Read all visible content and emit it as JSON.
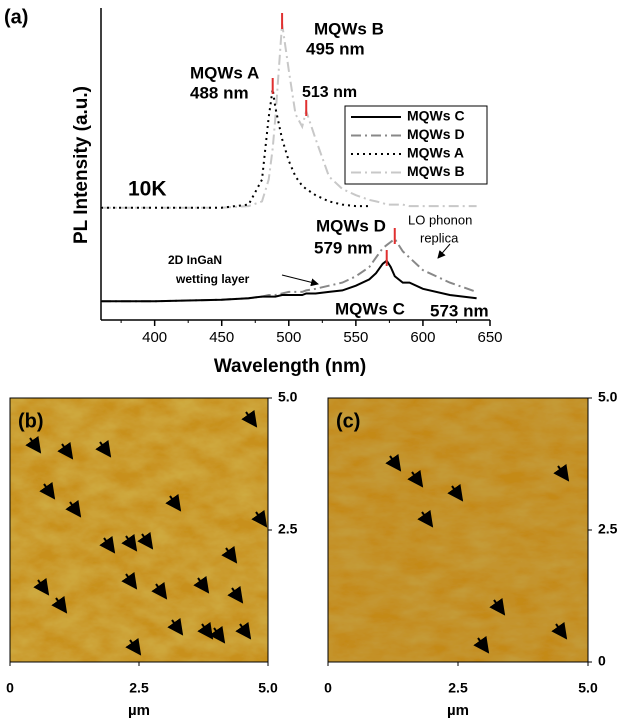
{
  "chart_data": [
    {
      "type": "line",
      "panel_label": "(a)",
      "x_label": "Wavelength (nm)",
      "y_label": "PL Intensity (a.u.)",
      "xlim": [
        360,
        650
      ],
      "xticks": [
        400,
        450,
        500,
        550,
        600,
        650
      ],
      "ylim": [
        0,
        100
      ],
      "legend_position": "right",
      "x": [
        360,
        400,
        450,
        470,
        480,
        485,
        488,
        490,
        495,
        500,
        505,
        510,
        513,
        520,
        530,
        540,
        550,
        560,
        565,
        570,
        573,
        576,
        579,
        585,
        590,
        600,
        620,
        640
      ],
      "series": [
        {
          "name": "MQWs C",
          "color": "#000000",
          "line_style": "solid",
          "values": [
            6,
            6,
            6.5,
            7,
            7.5,
            7.5,
            7.5,
            7.5,
            8,
            8,
            8,
            8,
            8.5,
            8.5,
            9,
            9.5,
            11,
            13,
            15,
            18,
            19,
            17,
            14,
            12,
            12,
            10,
            8,
            7
          ]
        },
        {
          "name": "MQWs D",
          "color": "#888888",
          "line_style": "dashdot",
          "values": [
            6,
            6,
            6.5,
            7,
            7.5,
            8,
            8,
            8,
            8.5,
            9,
            9,
            9,
            9.5,
            10,
            11,
            12,
            14,
            17,
            20,
            23,
            24,
            25,
            26,
            22,
            20,
            16,
            12,
            9
          ]
        },
        {
          "name": "MQWs A",
          "color": "#000000",
          "line_style": "dotted",
          "values": [
            36,
            36,
            36,
            37,
            45,
            65,
            74,
            68,
            58,
            51,
            46,
            43,
            42,
            40,
            38,
            37,
            36.5,
            36.5,
            null,
            null,
            null,
            null,
            null,
            null,
            null,
            null,
            null,
            null
          ]
        },
        {
          "name": "MQWs B",
          "color": "#c8c8c8",
          "line_style": "dashdot",
          "values": [
            36,
            36,
            36,
            36.5,
            38,
            45,
            55,
            65,
            95,
            80,
            66,
            62,
            67,
            58,
            46,
            42,
            40,
            38.5,
            38,
            37.5,
            37,
            37,
            37,
            37,
            36.5,
            36.5,
            36.5,
            36.5
          ]
        }
      ],
      "peak_markers": [
        488,
        495,
        513,
        573,
        579
      ],
      "annotations": [
        "MQWs B",
        "495 nm",
        "MQWs A",
        "488 nm",
        "513 nm",
        "10K",
        "MQWs D",
        "579 nm",
        "LO phonon",
        "replica",
        "2D InGaN",
        "wetting layer",
        "MQWs C",
        "573 nm"
      ]
    },
    {
      "type": "image",
      "panel_label": "(b)",
      "x_label": "µm",
      "xlim": [
        0,
        5
      ],
      "ylim": [
        0,
        5
      ],
      "xticks": [
        0,
        2.5,
        {
          "value": 5,
          "label": "5.0"
        }
      ],
      "yticks": [
        2.5,
        {
          "value": 5,
          "label": "5.0"
        }
      ]
    },
    {
      "type": "image",
      "panel_label": "(c)",
      "x_label": "µm",
      "xlim": [
        0,
        5
      ],
      "ylim": [
        0,
        5
      ],
      "xticks": [
        0,
        2.5,
        {
          "value": 5,
          "label": "5.0"
        }
      ],
      "yticks": [
        0,
        2.5,
        {
          "value": 5,
          "label": "5.0"
        }
      ]
    }
  ]
}
